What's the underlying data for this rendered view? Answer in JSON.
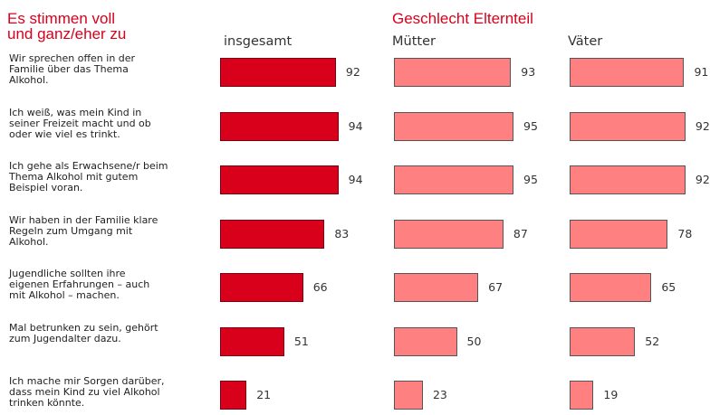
{
  "chart_data": {
    "type": "bar",
    "orientation": "horizontal",
    "title": "Es stimmen voll und ganz/eher zu",
    "group_title": "Geschlecht Elternteil",
    "categories": [
      "Wir sprechen offen in der Familie über das Thema Alkohol.",
      "Ich weiß, was mein Kind in seiner Freizeit macht und ob oder wie viel es trinkt.",
      "Ich gehe als Erwachsene/r beim Thema Alkohol mit gutem Beispiel voran.",
      "Wir haben in der Familie klare Regeln zum Umgang mit Alkohol.",
      "Jugendliche sollten ihre eigenen Erfahrungen – auch mit Alkohol – machen.",
      "Mal betrunken zu sein, gehört zum Jugendalter dazu.",
      "Ich mache mir Sorgen darüber, dass mein Kind zu viel Alkohol trinken könnte."
    ],
    "series": [
      {
        "name": "insgesamt",
        "color": "#d9001b",
        "values": [
          92,
          94,
          94,
          83,
          66,
          51,
          21
        ]
      },
      {
        "name": "Mütter",
        "color": "#ff8080",
        "values": [
          93,
          95,
          95,
          87,
          67,
          50,
          23
        ]
      },
      {
        "name": "Väter",
        "color": "#ff8080",
        "values": [
          91,
          92,
          92,
          78,
          65,
          52,
          19
        ]
      }
    ],
    "xlim": [
      0,
      100
    ]
  }
}
